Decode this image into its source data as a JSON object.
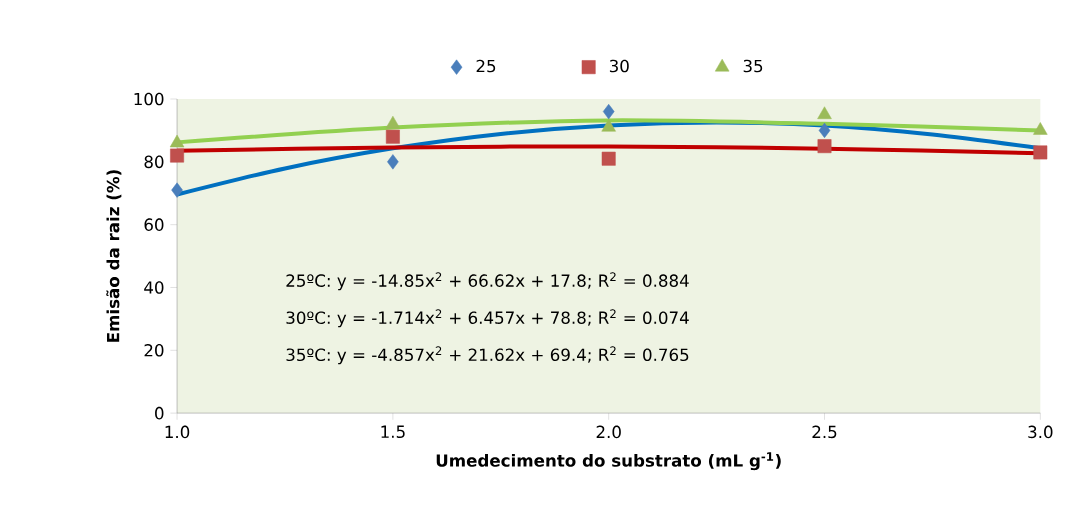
{
  "chart_data": {
    "type": "scatter",
    "xlabel": "Umedecimento do substrato (mL g$^{-1}$)",
    "ylabel": "Emisão da raiz (%)",
    "x": [
      1.0,
      1.5,
      2.0,
      2.5,
      3.0
    ],
    "series": [
      {
        "name": "25",
        "color": "#4a7ebb",
        "marker": "diamond",
        "values": [
          71,
          80,
          96,
          90,
          null
        ]
      },
      {
        "name": "30",
        "color": "#c0504d",
        "marker": "square",
        "values": [
          82,
          88,
          81,
          85,
          83
        ]
      },
      {
        "name": "35",
        "color": "#9bbb59",
        "marker": "triangle",
        "values": [
          86,
          92,
          91,
          95,
          90
        ]
      },
      {
        "type": "line",
        "color": "#0070c0",
        "marker": "none",
        "x": [
          1.0,
          1.25,
          1.5,
          1.75,
          2.0,
          2.25,
          2.5,
          2.75,
          3.0
        ],
        "values": [
          69.6,
          77.9,
          84.3,
          88.9,
          91.6,
          92.5,
          91.6,
          88.7,
          84.3
        ]
      },
      {
        "type": "line",
        "color": "#c00000",
        "marker": "none",
        "x": [
          1.0,
          1.5,
          2.0,
          2.5,
          3.0
        ],
        "values": [
          83.5,
          84.6,
          84.9,
          84.2,
          82.7
        ]
      },
      {
        "type": "line",
        "color": "#92d050",
        "marker": "none",
        "x": [
          1.0,
          1.5,
          2.0,
          2.5,
          3.0
        ],
        "values": [
          86.2,
          90.9,
          93.2,
          92.1,
          90.0
        ]
      }
    ],
    "xlim": [
      1.0,
      3.0
    ],
    "xticks": [
      {
        "value": 1.0,
        "label": "1.0"
      },
      {
        "value": 1.5,
        "label": "1.5"
      },
      {
        "value": 2.0,
        "label": "2.0"
      },
      {
        "value": 2.5,
        "label": "2.5"
      },
      {
        "value": 3.0,
        "label": "3.0"
      }
    ],
    "ylim": [
      0,
      100
    ],
    "yticks": [
      0,
      20,
      40,
      60,
      80,
      100
    ],
    "legend": "top",
    "annotations": [
      "25ºC: y = -14.85x$^{2}$ + 66.62x + 17.8; R$^{2}$ = 0.884",
      "30ºC: y = -1.714x$^{2}$ + 6.457x + 78.8; R$^{2}$ = 0.074",
      "35ºC: y = -4.857x$^{2}$ + 21.62x + 69.4; R$^{2}$ = 0.765"
    ]
  }
}
